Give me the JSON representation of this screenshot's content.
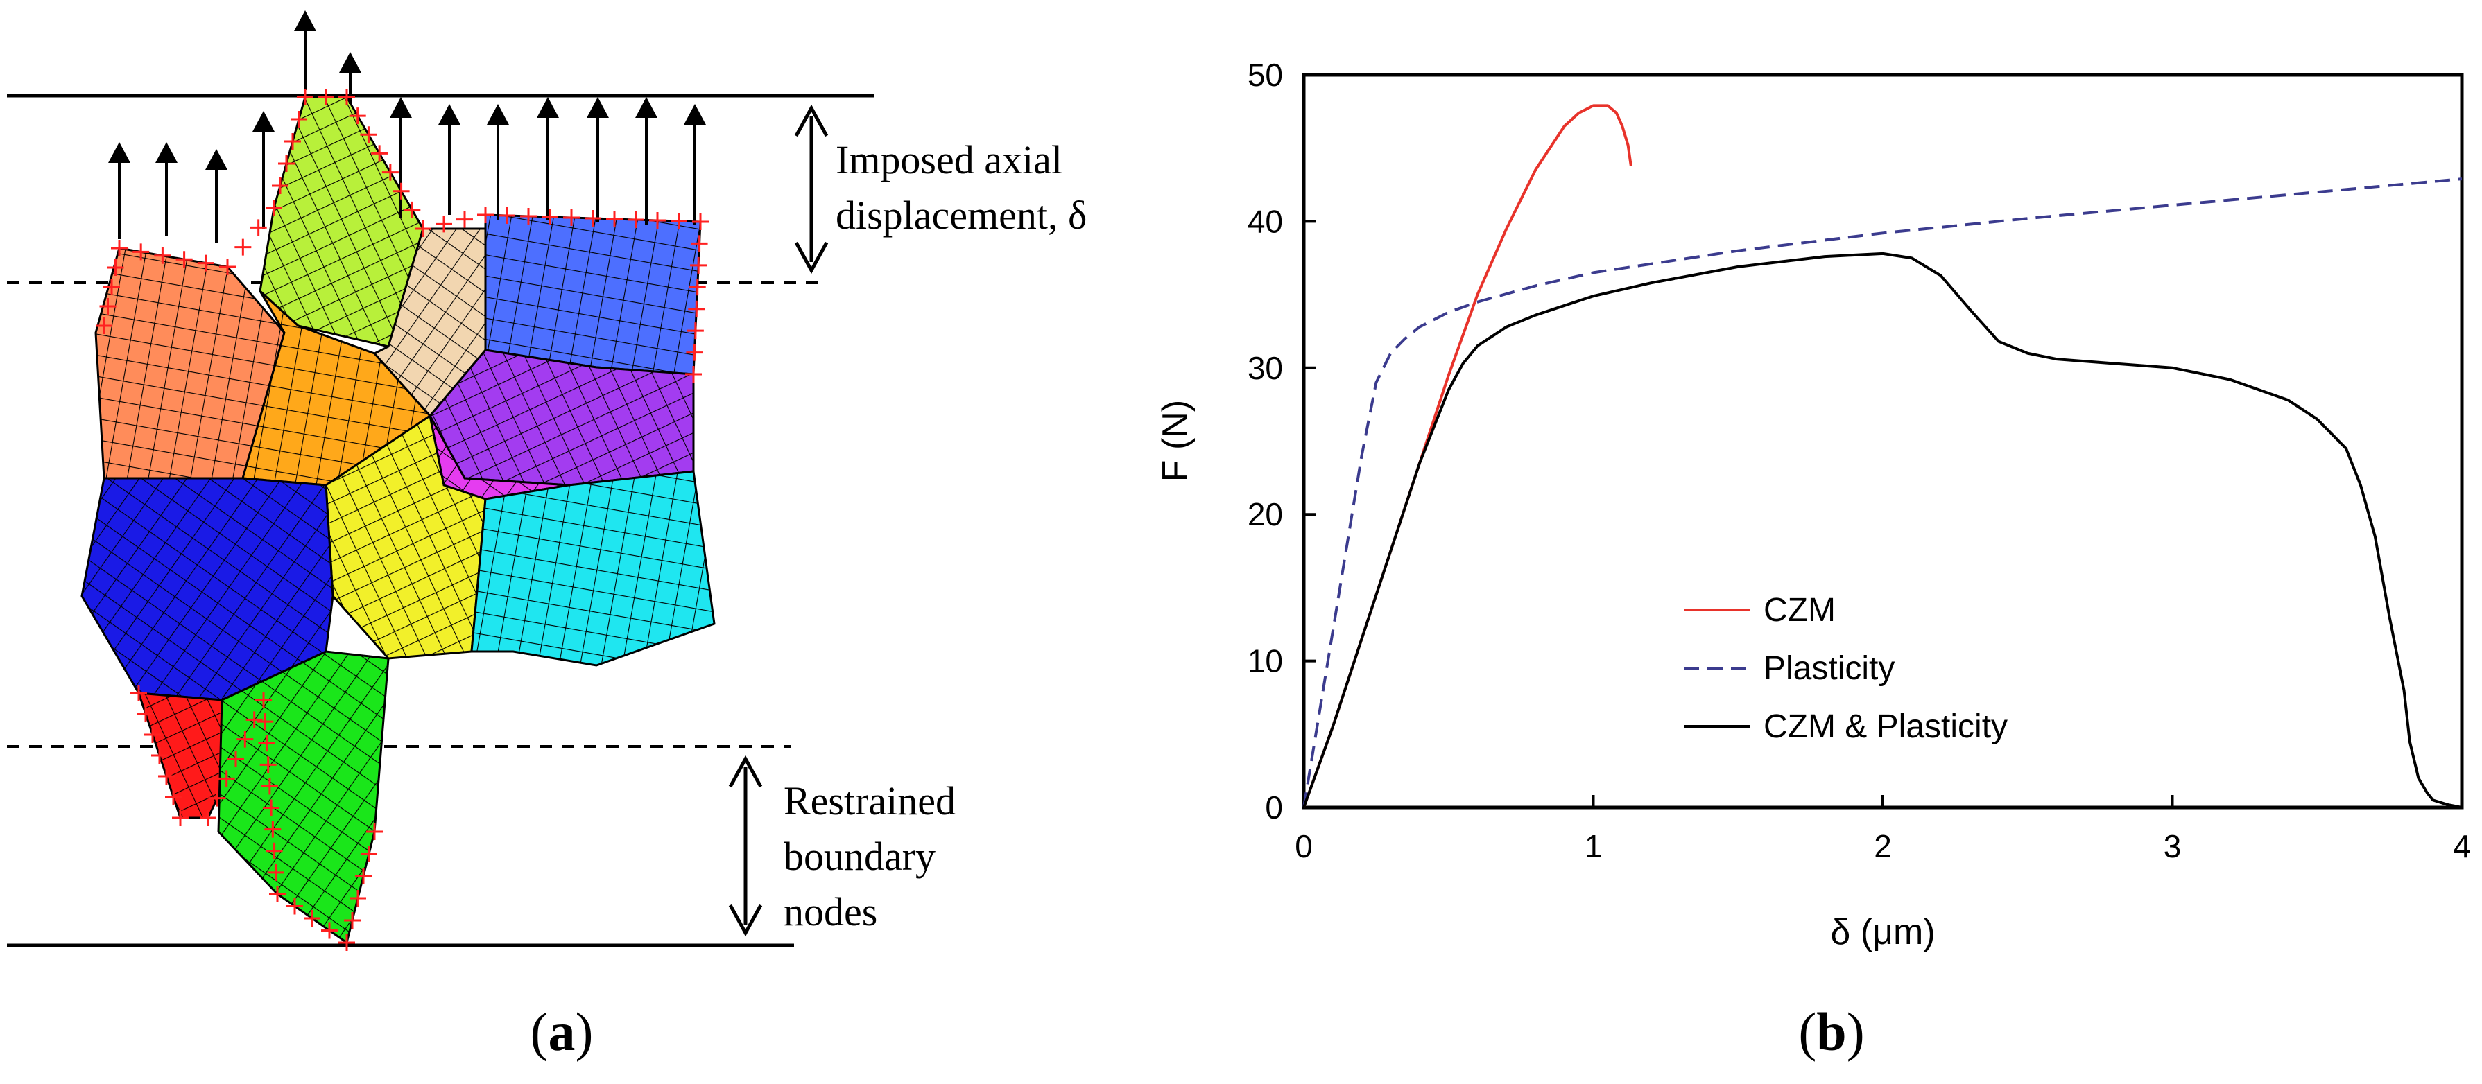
{
  "panel_a": {
    "caption_open": "(",
    "caption_letter": "a",
    "caption_close": ")",
    "top_label_line1": "Imposed axial",
    "top_label_line2": "displacement, δ",
    "bottom_label_line1": "Restrained",
    "bottom_label_line2": "boundary",
    "bottom_label_line3": "nodes",
    "grain_colors": [
      "#ff8c5a",
      "#b8f03a",
      "#f2d6b0",
      "#4d6fff",
      "#a33cf0",
      "#e53cf0",
      "#ffa81a",
      "#f2f02a",
      "#1a1ae6",
      "#1fe6f0",
      "#ff1a1a",
      "#1ae61a"
    ]
  },
  "panel_b": {
    "caption_open": "(",
    "caption_letter": "b",
    "caption_close": ")"
  },
  "chart_data": {
    "type": "line",
    "title": "",
    "xlabel": "δ (μm)",
    "ylabel": "F (N)",
    "xlim": [
      0,
      4
    ],
    "ylim": [
      0,
      50
    ],
    "xticks": [
      0,
      1,
      2,
      3,
      4
    ],
    "yticks": [
      0,
      10,
      20,
      30,
      40,
      50
    ],
    "grid": false,
    "legend_position": "lower-left-center",
    "series": [
      {
        "name": "CZM",
        "color": "#e8332b",
        "style": "solid",
        "x": [
          0,
          0.1,
          0.2,
          0.3,
          0.4,
          0.5,
          0.6,
          0.7,
          0.8,
          0.9,
          0.95,
          1.0,
          1.05,
          1.08,
          1.1,
          1.12,
          1.13
        ],
        "y": [
          0,
          5.5,
          11.5,
          17.5,
          23.5,
          29.5,
          35,
          39.5,
          43.5,
          46.5,
          47.4,
          47.9,
          47.9,
          47.4,
          46.5,
          45.2,
          43.8
        ]
      },
      {
        "name": "Plasticity",
        "color": "#3b3b8e",
        "style": "dashed",
        "x": [
          0,
          0.05,
          0.1,
          0.15,
          0.2,
          0.25,
          0.3,
          0.35,
          0.4,
          0.5,
          0.6,
          0.8,
          1.0,
          1.5,
          2.0,
          2.5,
          3.0,
          3.5,
          4.0
        ],
        "y": [
          0,
          6,
          12,
          18,
          24,
          29,
          31,
          32,
          32.8,
          33.8,
          34.5,
          35.6,
          36.5,
          38,
          39.2,
          40.2,
          41.1,
          42,
          42.9
        ]
      },
      {
        "name": "CZM & Plasticity",
        "color": "#000000",
        "style": "solid",
        "x": [
          0,
          0.1,
          0.2,
          0.3,
          0.4,
          0.5,
          0.55,
          0.6,
          0.7,
          0.8,
          1.0,
          1.2,
          1.5,
          1.8,
          2.0,
          2.1,
          2.2,
          2.3,
          2.4,
          2.5,
          2.6,
          2.8,
          3.0,
          3.2,
          3.4,
          3.5,
          3.6,
          3.65,
          3.7,
          3.75,
          3.8,
          3.82,
          3.85,
          3.88,
          3.9,
          3.95,
          4.0
        ],
        "y": [
          0,
          5.5,
          11.5,
          17.5,
          23.5,
          28.5,
          30.3,
          31.5,
          32.8,
          33.6,
          34.9,
          35.8,
          36.9,
          37.6,
          37.8,
          37.5,
          36.3,
          34,
          31.8,
          31,
          30.6,
          30.3,
          30,
          29.2,
          27.8,
          26.5,
          24.5,
          22,
          18.5,
          13,
          8,
          4.5,
          2,
          1,
          0.5,
          0.2,
          0
        ]
      }
    ]
  }
}
